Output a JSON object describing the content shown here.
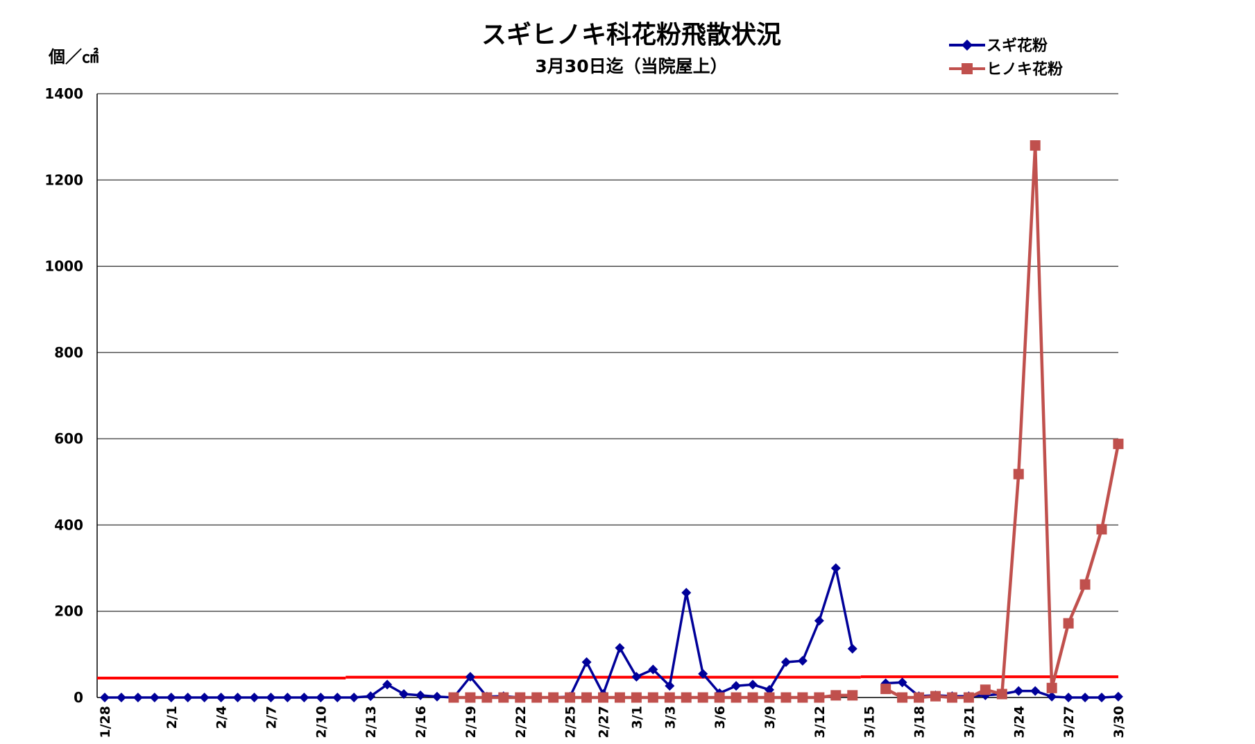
{
  "chart_data": {
    "type": "line",
    "title": "スギヒノキ科花粉飛散状況",
    "subtitle": "3月30日迄（当院屋上）",
    "ylabel": "個／㎠",
    "xlabel": "",
    "ylim": [
      0,
      1400
    ],
    "yticks": [
      0,
      200,
      400,
      600,
      800,
      1000,
      1200,
      1400
    ],
    "grid": true,
    "legend_position": "top-right",
    "x": [
      "1/28",
      "1/29",
      "1/30",
      "1/31",
      "2/1",
      "2/2",
      "2/3",
      "2/4",
      "2/5",
      "2/6",
      "2/7",
      "2/8",
      "2/9",
      "2/10",
      "2/11",
      "2/12",
      "2/13",
      "2/14",
      "2/15",
      "2/16",
      "2/17",
      "2/18",
      "2/19",
      "2/20",
      "2/21",
      "2/22",
      "2/23",
      "2/24",
      "2/25",
      "2/26",
      "2/27",
      "2/28",
      "3/1",
      "3/2",
      "3/3",
      "3/4",
      "3/5",
      "3/6",
      "3/7",
      "3/8",
      "3/9",
      "3/10",
      "3/11",
      "3/12",
      "3/13",
      "3/14",
      "3/15",
      "3/16",
      "3/17",
      "3/18",
      "3/19",
      "3/20",
      "3/21",
      "3/22",
      "3/23",
      "3/24",
      "3/25",
      "3/26",
      "3/27",
      "3/28",
      "3/29",
      "3/30"
    ],
    "tick_labels": [
      {
        "index": 0,
        "label": "1/28"
      },
      {
        "index": 4,
        "label": "2/1"
      },
      {
        "index": 7,
        "label": "2/4"
      },
      {
        "index": 10,
        "label": "2/7"
      },
      {
        "index": 13,
        "label": "2/10"
      },
      {
        "index": 16,
        "label": "2/13"
      },
      {
        "index": 19,
        "label": "2/16"
      },
      {
        "index": 22,
        "label": "2/19"
      },
      {
        "index": 25,
        "label": "2/22"
      },
      {
        "index": 28,
        "label": "2/25"
      },
      {
        "index": 30,
        "label": "2/27"
      },
      {
        "index": 32,
        "label": "3/1"
      },
      {
        "index": 34,
        "label": "3/3"
      },
      {
        "index": 37,
        "label": "3/6"
      },
      {
        "index": 40,
        "label": "3/9"
      },
      {
        "index": 43,
        "label": "3/12"
      },
      {
        "index": 46,
        "label": "3/15"
      },
      {
        "index": 49,
        "label": "3/18"
      },
      {
        "index": 52,
        "label": "3/21"
      },
      {
        "index": 55,
        "label": "3/24"
      },
      {
        "index": 58,
        "label": "3/27"
      },
      {
        "index": 61,
        "label": "3/30"
      }
    ],
    "series": [
      {
        "name": "スギ花粉",
        "color": "#000099",
        "marker": "diamond",
        "values": [
          0,
          0,
          0,
          0,
          0,
          0,
          0,
          0,
          0,
          0,
          0,
          0,
          0,
          0,
          0,
          0,
          3,
          30,
          8,
          5,
          2,
          0,
          48,
          2,
          3,
          0,
          0,
          0,
          2,
          82,
          8,
          115,
          48,
          65,
          27,
          243,
          55,
          10,
          27,
          30,
          18,
          82,
          85,
          178,
          300,
          113,
          null,
          33,
          35,
          3,
          5,
          3,
          3,
          5,
          8,
          15,
          15,
          2,
          0,
          0,
          0,
          2
        ]
      },
      {
        "name": "ヒノキ花粉",
        "color": "#C0504D",
        "marker": "square",
        "values": [
          null,
          null,
          null,
          null,
          null,
          null,
          null,
          null,
          null,
          null,
          null,
          null,
          null,
          null,
          null,
          null,
          null,
          null,
          null,
          null,
          null,
          0,
          0,
          0,
          0,
          0,
          0,
          0,
          0,
          0,
          0,
          0,
          0,
          0,
          0,
          0,
          0,
          0,
          0,
          0,
          0,
          0,
          0,
          0,
          5,
          5,
          null,
          20,
          0,
          0,
          3,
          0,
          0,
          18,
          8,
          518,
          1280,
          22,
          172,
          262,
          390,
          588
        ]
      }
    ],
    "reference_line": {
      "color": "#FF0000",
      "segments": [
        {
          "x_from": 0,
          "x_to": 15,
          "y": 45
        },
        {
          "x_from": 15,
          "x_to": 46,
          "y": 47
        },
        {
          "x_from": 46,
          "x_to": 62,
          "y": 48
        }
      ]
    }
  }
}
